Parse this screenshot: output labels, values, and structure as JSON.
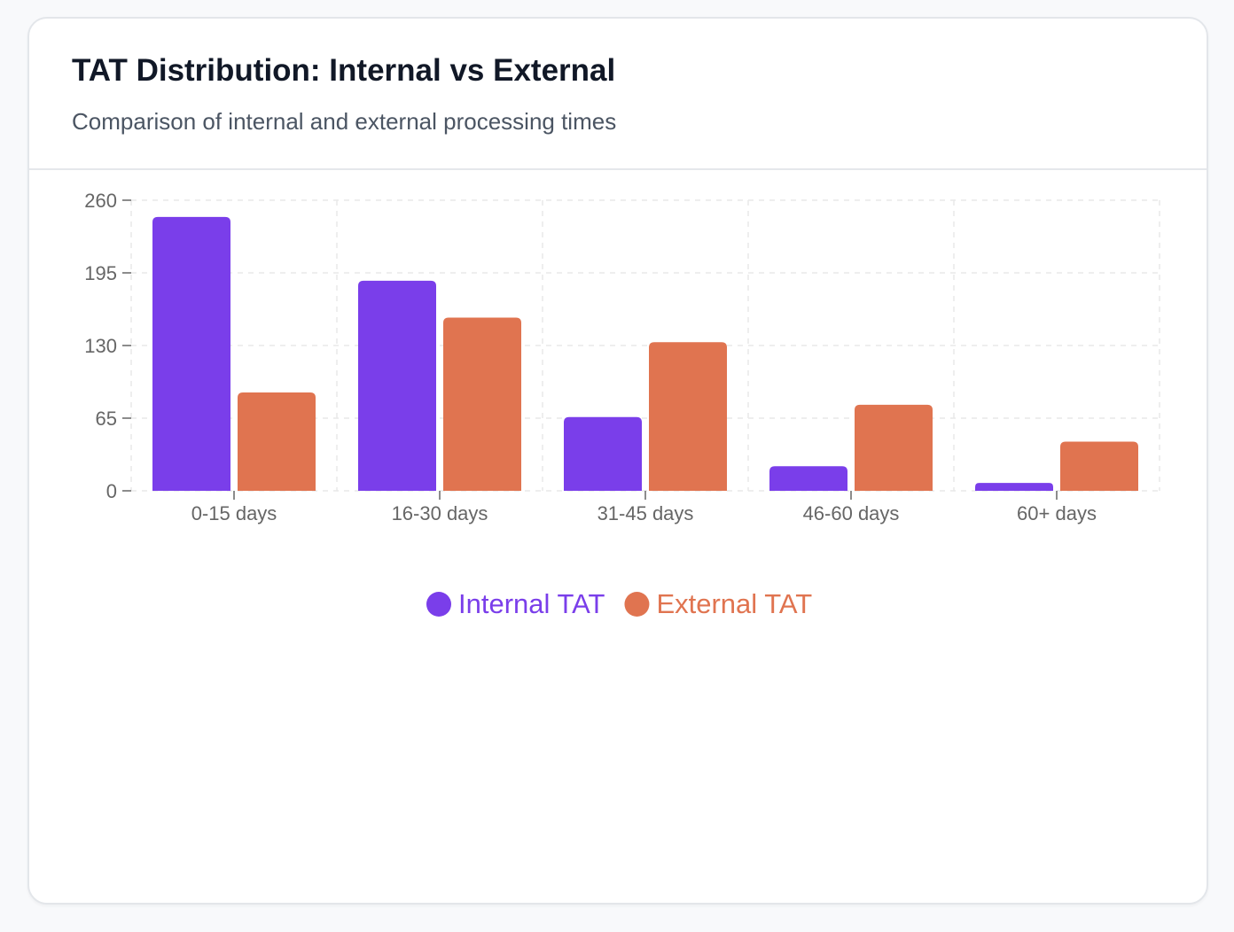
{
  "card": {
    "title": "TAT Distribution: Internal vs External",
    "subtitle": "Comparison of internal and external processing times"
  },
  "chart_data": {
    "type": "bar",
    "categories": [
      "0-15 days",
      "16-30 days",
      "31-45 days",
      "46-60 days",
      "60+ days"
    ],
    "series": [
      {
        "name": "Internal TAT",
        "color": "#7a3eea",
        "values": [
          245,
          188,
          66,
          22,
          7
        ]
      },
      {
        "name": "External TAT",
        "color": "#e07450",
        "values": [
          88,
          155,
          133,
          77,
          44
        ]
      }
    ],
    "y_ticks": [
      0,
      65,
      130,
      195,
      260
    ],
    "ylim": [
      0,
      260
    ],
    "grid": true,
    "legend_position": "bottom-center",
    "title": "",
    "xlabel": "",
    "ylabel": ""
  }
}
